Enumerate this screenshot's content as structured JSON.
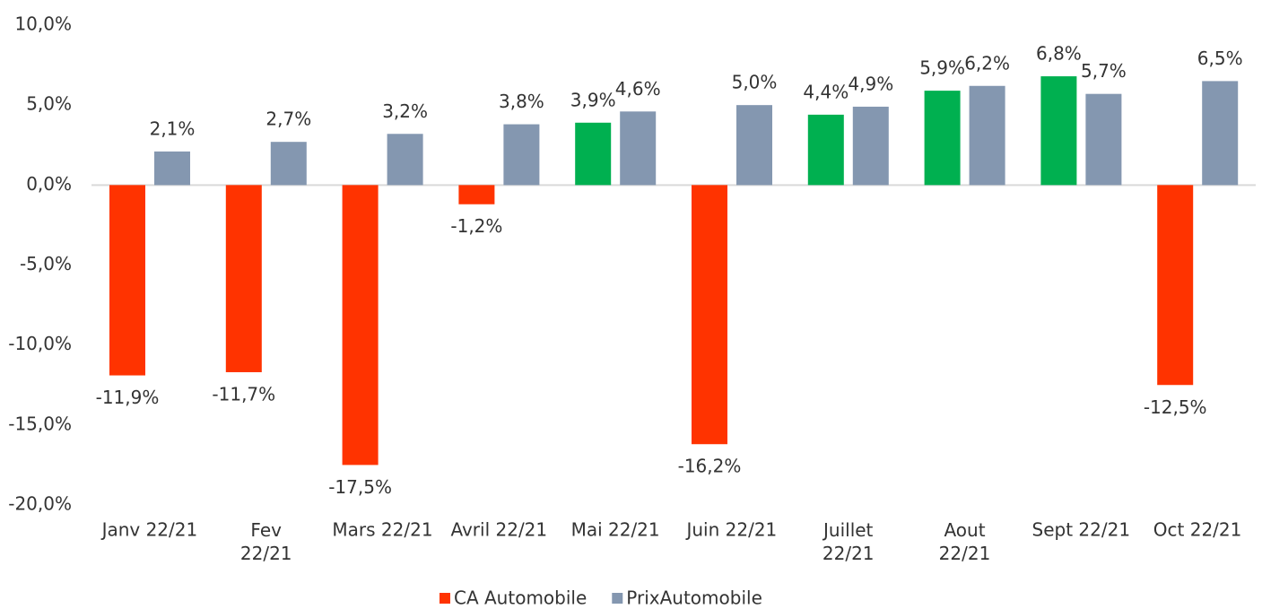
{
  "chart_data": {
    "type": "bar",
    "categories": [
      "Janv 22/21",
      "Fev\n22/21",
      "Mars 22/21",
      "Avril 22/21",
      "Mai 22/21",
      "Juin 22/21",
      "Juillet\n22/21",
      "Aout\n22/21",
      "Sept 22/21",
      "Oct 22/21"
    ],
    "series": [
      {
        "name": "CA Automobile",
        "color": "#ff3300",
        "point_colors": [
          "#ff3300",
          "#ff3300",
          "#ff3300",
          "#ff3300",
          "#00b050",
          "#ff3300",
          "#00b050",
          "#00b050",
          "#00b050",
          "#ff3300"
        ],
        "values": [
          -11.9,
          -11.7,
          -17.5,
          -1.2,
          3.9,
          -16.2,
          4.4,
          5.9,
          6.8,
          -12.5
        ],
        "value_labels": [
          "-11,9%",
          "-11,7%",
          "-17,5%",
          "-1,2%",
          "3,9%",
          "-16,2%",
          "4,4%",
          "5,9%",
          "6,8%",
          "-12,5%"
        ]
      },
      {
        "name": "PrixAutomobile",
        "color": "#8497b0",
        "values": [
          2.1,
          2.7,
          3.2,
          3.8,
          4.6,
          5.0,
          4.9,
          6.2,
          5.7,
          6.5
        ],
        "value_labels": [
          "2,1%",
          "2,7%",
          "3,2%",
          "3,8%",
          "4,6%",
          "5,0%",
          "4,9%",
          "6,2%",
          "5,7%",
          "6,5%"
        ]
      }
    ],
    "ylim": [
      -20,
      10
    ],
    "yticks": [
      {
        "value": -20,
        "label": "-20,0%"
      },
      {
        "value": -15,
        "label": "-15,0%"
      },
      {
        "value": -10,
        "label": "-10,0%"
      },
      {
        "value": -5,
        "label": "-5,0%"
      },
      {
        "value": 0,
        "label": "0,0%"
      },
      {
        "value": 5,
        "label": "5,0%"
      },
      {
        "value": 10,
        "label": "10,0%"
      }
    ],
    "grid": false,
    "legend": "bottom"
  }
}
